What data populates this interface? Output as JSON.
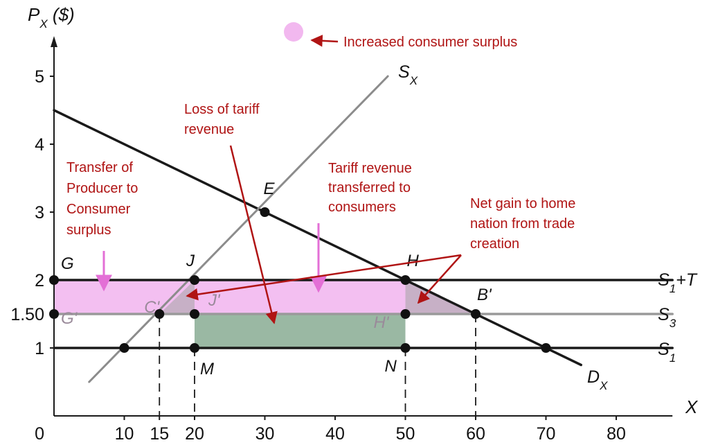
{
  "chart_data": {
    "type": "line",
    "title": "",
    "y_axis": {
      "label": "P",
      "label_sub": "X",
      "label_unit": "($)",
      "range": [
        0,
        6
      ],
      "ticks": [
        {
          "value": 1,
          "label": "1"
        },
        {
          "value": 1.5,
          "label": "1.50"
        },
        {
          "value": 2,
          "label": "2"
        },
        {
          "value": 3,
          "label": "3"
        },
        {
          "value": 4,
          "label": "4"
        },
        {
          "value": 5,
          "label": "5"
        }
      ]
    },
    "x_axis": {
      "label": "X",
      "range": [
        0,
        88
      ],
      "origin_label": "0",
      "ticks": [
        {
          "value": 10,
          "label": "10"
        },
        {
          "value": 15,
          "label": "15"
        },
        {
          "value": 20,
          "label": "20"
        },
        {
          "value": 30,
          "label": "30"
        },
        {
          "value": 40,
          "label": "40"
        },
        {
          "value": 50,
          "label": "50"
        },
        {
          "value": 60,
          "label": "60"
        },
        {
          "value": 70,
          "label": "70"
        },
        {
          "value": 80,
          "label": "80"
        }
      ]
    },
    "series": [
      {
        "name": "D",
        "name_sub": "X",
        "kind": "demand",
        "points": [
          [
            0,
            4.5
          ],
          [
            75,
            0.75
          ]
        ],
        "color": "#1a1a1a"
      },
      {
        "name": "S",
        "name_sub": "X",
        "kind": "supply",
        "points": [
          [
            5,
            0.5
          ],
          [
            47.5,
            5.0
          ]
        ],
        "color": "#8c8c8c"
      },
      {
        "name": "S",
        "name_sub": "1",
        "name_suffix": "+T",
        "kind": "horizontal",
        "value": 2,
        "color": "#1a1a1a"
      },
      {
        "name": "S",
        "name_sub": "3",
        "kind": "horizontal",
        "value": 1.5,
        "color": "#9a9a9a"
      },
      {
        "name": "S",
        "name_sub": "1",
        "kind": "horizontal",
        "value": 1,
        "color": "#1a1a1a"
      }
    ],
    "points": [
      {
        "label": "E",
        "x": 30,
        "y": 3
      },
      {
        "label": "G",
        "x": 0,
        "y": 2
      },
      {
        "label": "J",
        "x": 20,
        "y": 2
      },
      {
        "label": "H",
        "x": 50,
        "y": 2
      },
      {
        "label": "G'",
        "x": 0,
        "y": 1.5
      },
      {
        "label": "C'",
        "x": 15,
        "y": 1.5
      },
      {
        "label": "J'",
        "x": 20,
        "y": 1.5
      },
      {
        "label": "H'",
        "x": 50,
        "y": 1.5
      },
      {
        "label": "B'",
        "x": 60,
        "y": 1.5
      },
      {
        "label": "M",
        "x": 20,
        "y": 1
      },
      {
        "label": "N",
        "x": 50,
        "y": 1
      },
      {
        "label": "",
        "x": 10,
        "y": 1
      },
      {
        "label": "",
        "x": 70,
        "y": 1
      }
    ],
    "regions": [
      {
        "name": "consumer-surplus-increase",
        "color": "#f2b8ef"
      },
      {
        "name": "tariff-revenue-loss",
        "color": "#88ab93"
      },
      {
        "name": "trade-creation-triangles",
        "color": "#c7b0c6"
      }
    ],
    "annotations": {
      "legend": "Increased consumer surplus",
      "loss_tariff": [
        "Loss of tariff",
        "revenue"
      ],
      "transfer": [
        "Transfer of",
        "Producer to",
        "Consumer",
        "surplus"
      ],
      "tariff_transfer": [
        "Tariff revenue",
        "transferred to",
        "consumers"
      ],
      "net_gain": [
        "Net gain to home",
        "nation from trade",
        "creation"
      ]
    },
    "colors": {
      "annotation": "#b01414",
      "axis": "#1a1a1a"
    }
  }
}
